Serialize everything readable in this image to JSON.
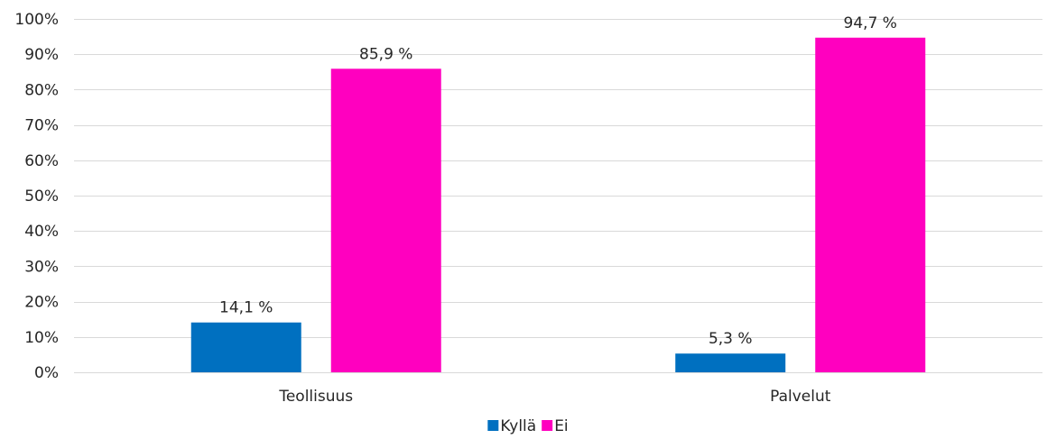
{
  "chart_data": {
    "type": "bar",
    "categories": [
      "Teollisuus",
      "Palvelut"
    ],
    "series": [
      {
        "name": "Kyllä",
        "values": [
          14.1,
          5.3
        ],
        "labels": [
          "14,1 %",
          "5,3 %"
        ],
        "color": "#0070C0"
      },
      {
        "name": "Ei",
        "values": [
          85.9,
          94.7
        ],
        "labels": [
          "85,9 %",
          "94,7 %"
        ],
        "color": "#FF00BF"
      }
    ],
    "ylim": [
      0,
      100
    ],
    "yticks": [
      0,
      10,
      20,
      30,
      40,
      50,
      60,
      70,
      80,
      90,
      100
    ],
    "ytick_labels": [
      "0%",
      "10%",
      "20%",
      "30%",
      "40%",
      "50%",
      "60%",
      "70%",
      "80%",
      "90%",
      "100%"
    ],
    "grid": true,
    "gridline_color": "#D9D9D9",
    "legend_position": "bottom"
  }
}
